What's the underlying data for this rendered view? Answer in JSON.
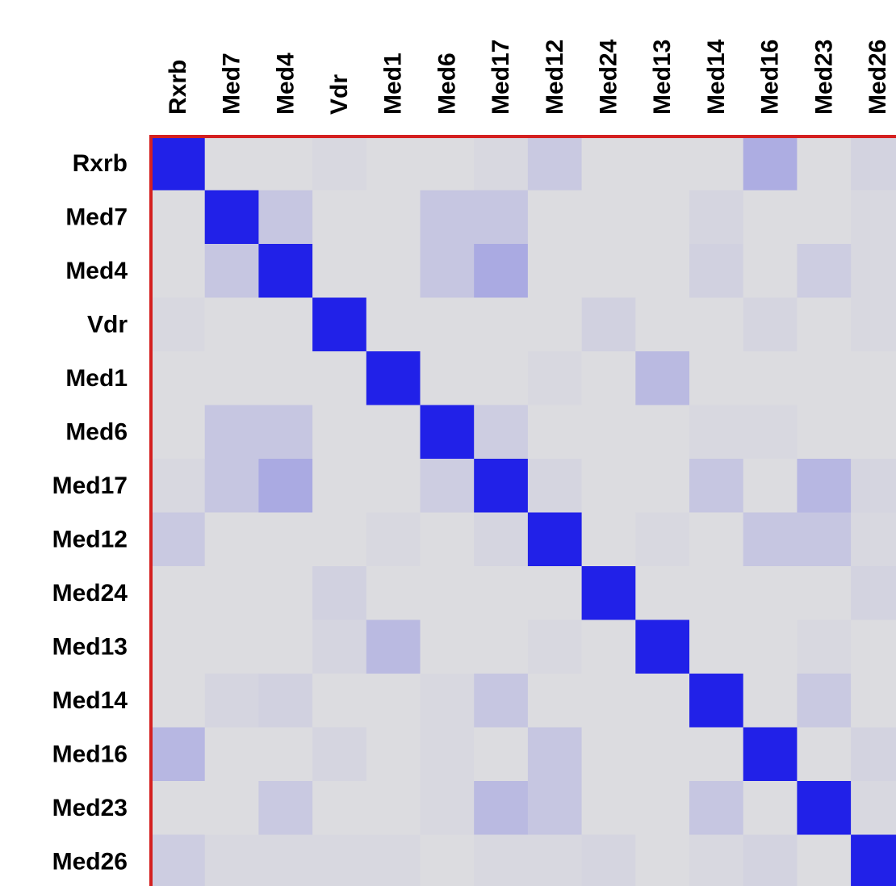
{
  "chart_data": {
    "type": "heatmap",
    "title": "",
    "xlabel": "",
    "ylabel": "",
    "row_labels": [
      "Rxrb",
      "Med7",
      "Med4",
      "Vdr",
      "Med1",
      "Med6",
      "Med17",
      "Med12",
      "Med24",
      "Med13",
      "Med14",
      "Med16",
      "Med23",
      "Med26"
    ],
    "col_labels": [
      "Rxrb",
      "Med7",
      "Med4",
      "Vdr",
      "Med1",
      "Med6",
      "Med17",
      "Med12",
      "Med24",
      "Med13",
      "Med14",
      "Med16",
      "Med23",
      "Med26"
    ],
    "values": [
      [
        1.0,
        0.0,
        0.0,
        0.02,
        0.0,
        0.0,
        0.02,
        0.1,
        0.0,
        0.0,
        0.0,
        0.25,
        0.0,
        0.05
      ],
      [
        0.0,
        1.0,
        0.12,
        0.0,
        0.0,
        0.12,
        0.12,
        0.0,
        0.0,
        0.0,
        0.04,
        0.0,
        0.0,
        0.02
      ],
      [
        0.0,
        0.12,
        1.0,
        0.0,
        0.0,
        0.12,
        0.27,
        0.0,
        0.0,
        0.0,
        0.06,
        0.0,
        0.08,
        0.02
      ],
      [
        0.02,
        0.0,
        0.0,
        1.0,
        0.0,
        0.0,
        0.0,
        0.0,
        0.06,
        0.0,
        0.0,
        0.04,
        0.0,
        0.02
      ],
      [
        0.0,
        0.0,
        0.0,
        0.0,
        1.0,
        0.0,
        0.0,
        0.02,
        0.0,
        0.18,
        0.0,
        0.0,
        0.0,
        0.0
      ],
      [
        0.0,
        0.12,
        0.12,
        0.0,
        0.0,
        1.0,
        0.08,
        0.0,
        0.0,
        0.0,
        0.02,
        0.02,
        0.0,
        0.0
      ],
      [
        0.02,
        0.12,
        0.27,
        0.0,
        0.0,
        0.08,
        1.0,
        0.04,
        0.0,
        0.0,
        0.12,
        0.0,
        0.2,
        0.04
      ],
      [
        0.1,
        0.0,
        0.0,
        0.0,
        0.02,
        0.0,
        0.04,
        1.0,
        0.0,
        0.02,
        0.0,
        0.12,
        0.12,
        0.02
      ],
      [
        0.0,
        0.0,
        0.0,
        0.06,
        0.0,
        0.0,
        0.0,
        0.0,
        1.0,
        0.0,
        0.0,
        0.0,
        0.0,
        0.05
      ],
      [
        0.0,
        0.0,
        0.0,
        0.04,
        0.18,
        0.0,
        0.0,
        0.02,
        0.0,
        1.0,
        0.0,
        0.0,
        0.02,
        0.0
      ],
      [
        0.0,
        0.04,
        0.06,
        0.0,
        0.0,
        0.02,
        0.12,
        0.0,
        0.0,
        0.0,
        1.0,
        0.0,
        0.1,
        0.0
      ],
      [
        0.2,
        0.0,
        0.0,
        0.04,
        0.0,
        0.02,
        0.0,
        0.12,
        0.0,
        0.0,
        0.0,
        1.0,
        0.0,
        0.05
      ],
      [
        0.0,
        0.0,
        0.1,
        0.0,
        0.0,
        0.02,
        0.18,
        0.12,
        0.0,
        0.0,
        0.12,
        0.0,
        1.0,
        0.02
      ],
      [
        0.08,
        0.02,
        0.02,
        0.02,
        0.02,
        0.0,
        0.02,
        0.02,
        0.04,
        0.0,
        0.02,
        0.05,
        0.0,
        1.0
      ]
    ],
    "color_low": "#dcdce0",
    "color_high": "#2121e8",
    "border_color": "#d42020",
    "legend": "none",
    "grid": false
  }
}
